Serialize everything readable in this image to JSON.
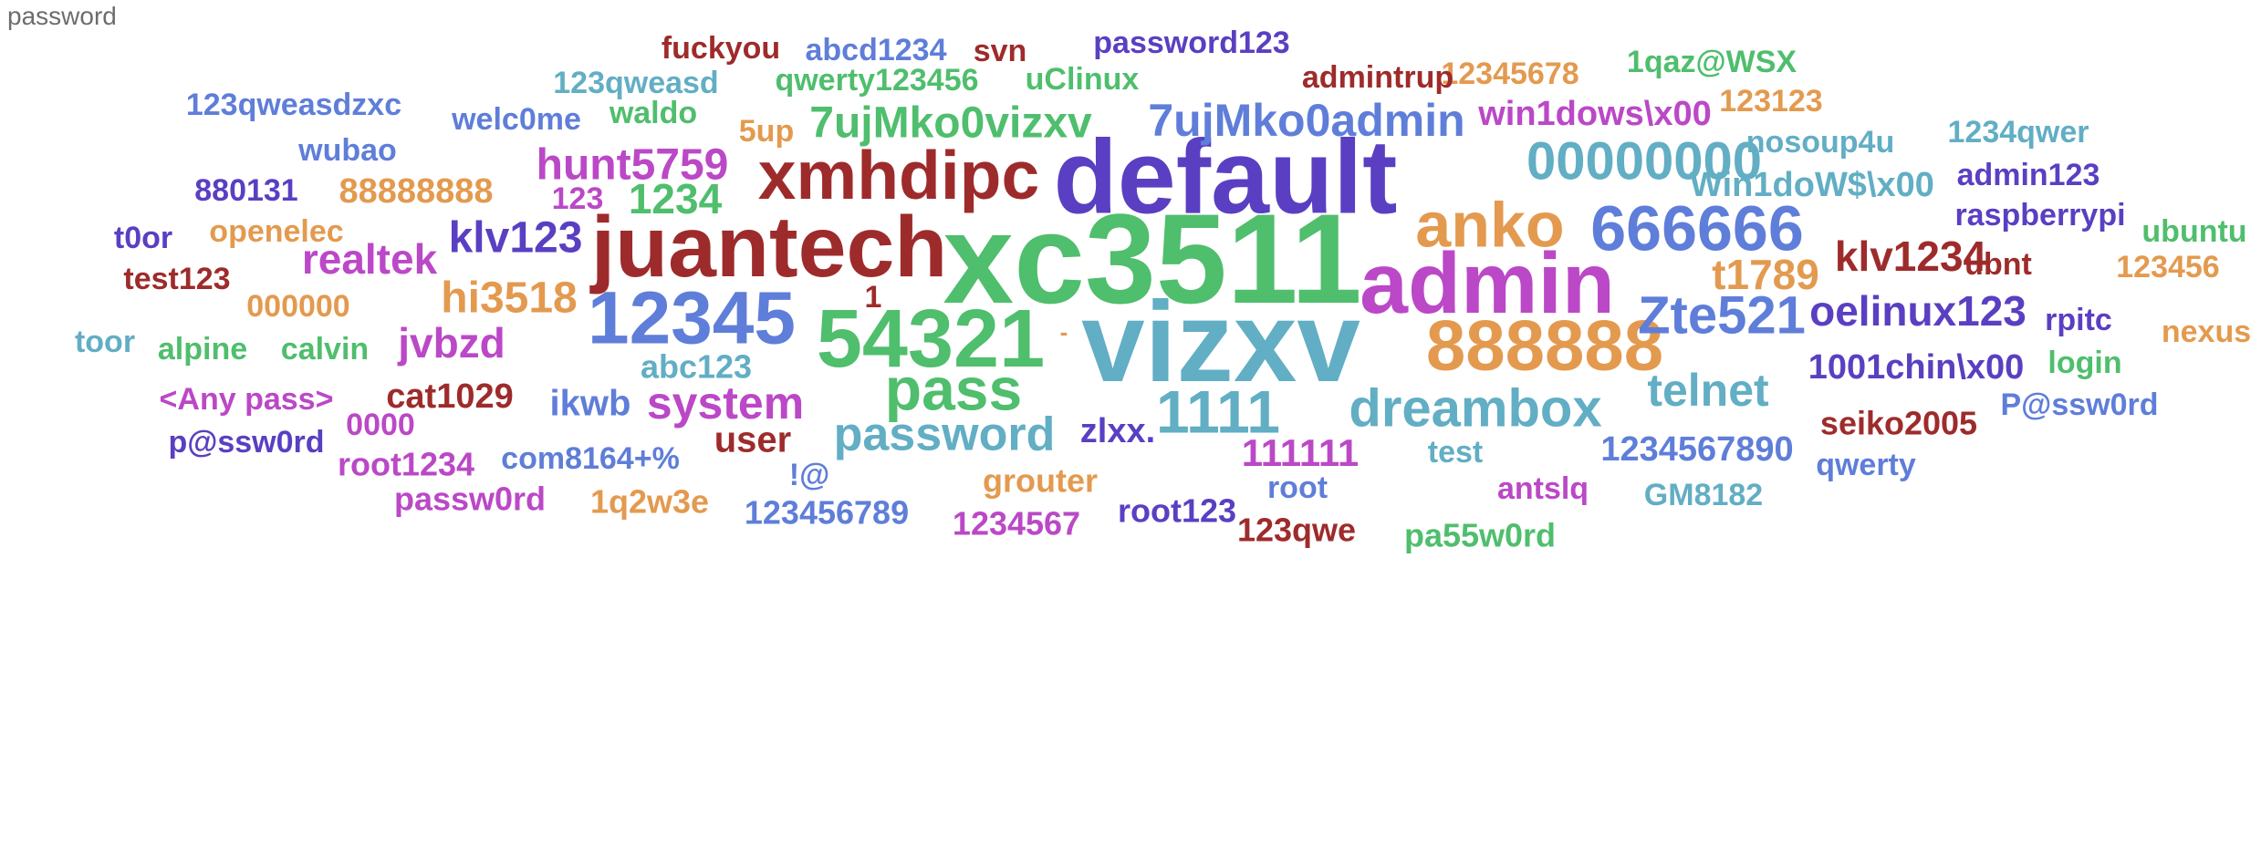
{
  "panel": {
    "title": "password"
  },
  "chart_data": {
    "type": "wordcloud",
    "words": [
      {
        "text": "xc3511",
        "weight": 100,
        "color": "#4fbe6d"
      },
      {
        "text": "vizxv",
        "weight": 96,
        "color": "#62aec4"
      },
      {
        "text": "default",
        "weight": 88,
        "color": "#5a3fc2"
      },
      {
        "text": "admin",
        "weight": 80,
        "color": "#bb48c7"
      },
      {
        "text": "juantech",
        "weight": 80,
        "color": "#9e2b2b"
      },
      {
        "text": "54321",
        "weight": 72,
        "color": "#4fbe6d"
      },
      {
        "text": "12345",
        "weight": 70,
        "color": "#5f7ed9"
      },
      {
        "text": "888888",
        "weight": 66,
        "color": "#e39a4f"
      },
      {
        "text": "xmhdipc",
        "weight": 66,
        "color": "#9e2b2b"
      },
      {
        "text": "anko",
        "weight": 62,
        "color": "#e39a4f"
      },
      {
        "text": "666666",
        "weight": 60,
        "color": "#5f7ed9"
      },
      {
        "text": "pass",
        "weight": 56,
        "color": "#4fbe6d"
      },
      {
        "text": "1111",
        "weight": 54,
        "color": "#62aec4"
      },
      {
        "text": "00000000",
        "weight": 50,
        "color": "#62aec4"
      },
      {
        "text": "dreambox",
        "weight": 50,
        "color": "#62aec4"
      },
      {
        "text": "Zte521",
        "weight": 48,
        "color": "#5f7ed9"
      },
      {
        "text": "password",
        "weight": 46,
        "color": "#62aec4"
      },
      {
        "text": "7ujMko0admin",
        "weight": 42,
        "color": "#5f7ed9"
      },
      {
        "text": "system",
        "weight": 42,
        "color": "#bb48c7"
      },
      {
        "text": "telnet",
        "weight": 42,
        "color": "#62aec4"
      },
      {
        "text": "7ujMko0vizxv",
        "weight": 40,
        "color": "#4fbe6d"
      },
      {
        "text": "hi3518",
        "weight": 40,
        "color": "#e39a4f"
      },
      {
        "text": "hunt5759",
        "weight": 40,
        "color": "#bb48c7"
      },
      {
        "text": "klv123",
        "weight": 40,
        "color": "#5a3fc2"
      },
      {
        "text": "oelinux123",
        "weight": 40,
        "color": "#5a3fc2"
      },
      {
        "text": "t1789",
        "weight": 40,
        "color": "#e39a4f"
      },
      {
        "text": "1234",
        "weight": 38,
        "color": "#4fbe6d"
      },
      {
        "text": "jvbzd",
        "weight": 38,
        "color": "#bb48c7"
      },
      {
        "text": "klv1234",
        "weight": 38,
        "color": "#9e2b2b"
      },
      {
        "text": "realtek",
        "weight": 38,
        "color": "#bb48c7"
      },
      {
        "text": "111111",
        "weight": 34,
        "color": "#bb48c7"
      },
      {
        "text": "ikwb",
        "weight": 34,
        "color": "#5f7ed9"
      },
      {
        "text": "user",
        "weight": 34,
        "color": "#9e2b2b"
      },
      {
        "text": "win1dows\\x00",
        "weight": 32,
        "color": "#bb48c7"
      },
      {
        "text": "Win1doW$\\x00",
        "weight": 32,
        "color": "#62aec4"
      },
      {
        "text": "cat1029",
        "weight": 32,
        "color": "#9e2b2b"
      },
      {
        "text": "1234567890",
        "weight": 32,
        "color": "#5f7ed9"
      },
      {
        "text": "1001chin\\x00",
        "weight": 32,
        "color": "#5a3fc2"
      },
      {
        "text": "zlxx.",
        "weight": 32,
        "color": "#5a3fc2"
      },
      {
        "text": "88888888",
        "weight": 32,
        "color": "#e39a4f"
      },
      {
        "text": "seiko2005",
        "weight": 30,
        "color": "#9e2b2b"
      },
      {
        "text": "123456789",
        "weight": 30,
        "color": "#5f7ed9"
      },
      {
        "text": "1234567",
        "weight": 30,
        "color": "#bb48c7"
      },
      {
        "text": "root123",
        "weight": 30,
        "color": "#5a3fc2"
      },
      {
        "text": "123qwe",
        "weight": 30,
        "color": "#9e2b2b"
      },
      {
        "text": "pa55w0rd",
        "weight": 30,
        "color": "#4fbe6d"
      },
      {
        "text": "grouter",
        "weight": 30,
        "color": "#e39a4f"
      },
      {
        "text": "root1234",
        "weight": 30,
        "color": "#bb48c7"
      },
      {
        "text": "passw0rd",
        "weight": 30,
        "color": "#bb48c7"
      },
      {
        "text": "1q2w3e",
        "weight": 30,
        "color": "#e39a4f"
      },
      {
        "text": "abc123",
        "weight": 30,
        "color": "#62aec4"
      },
      {
        "text": "com8164+%",
        "weight": 30,
        "color": "#5f7ed9"
      },
      {
        "text": "p@ssw0rd",
        "weight": 30,
        "color": "#5a3fc2"
      },
      {
        "text": "P@ssw0rd",
        "weight": 30,
        "color": "#5f7ed9"
      },
      {
        "text": "<Any pass>",
        "weight": 30,
        "color": "#bb48c7"
      },
      {
        "text": "0000",
        "weight": 30,
        "color": "#bb48c7"
      },
      {
        "text": "test",
        "weight": 30,
        "color": "#62aec4"
      },
      {
        "text": "root",
        "weight": 30,
        "color": "#5f7ed9"
      },
      {
        "text": "antslq",
        "weight": 30,
        "color": "#bb48c7"
      },
      {
        "text": "GM8182",
        "weight": 30,
        "color": "#62aec4"
      },
      {
        "text": "qwerty",
        "weight": 30,
        "color": "#5f7ed9"
      },
      {
        "text": "login",
        "weight": 30,
        "color": "#4fbe6d"
      },
      {
        "text": "nexus",
        "weight": 30,
        "color": "#e39a4f"
      },
      {
        "text": "rpitc",
        "weight": 30,
        "color": "#5a3fc2"
      },
      {
        "text": "123456",
        "weight": 30,
        "color": "#e39a4f"
      },
      {
        "text": "ubnt",
        "weight": 30,
        "color": "#9e2b2b"
      },
      {
        "text": "ubuntu",
        "weight": 30,
        "color": "#4fbe6d"
      },
      {
        "text": "raspberrypi",
        "weight": 30,
        "color": "#5a3fc2"
      },
      {
        "text": "admin123",
        "weight": 30,
        "color": "#5a3fc2"
      },
      {
        "text": "1234qwer",
        "weight": 30,
        "color": "#62aec4"
      },
      {
        "text": "nosoup4u",
        "weight": 30,
        "color": "#62aec4"
      },
      {
        "text": "123123",
        "weight": 30,
        "color": "#e39a4f"
      },
      {
        "text": "12345678",
        "weight": 30,
        "color": "#e39a4f"
      },
      {
        "text": "1qaz@WSX",
        "weight": 30,
        "color": "#4fbe6d"
      },
      {
        "text": "admintrup",
        "weight": 30,
        "color": "#9e2b2b"
      },
      {
        "text": "password123",
        "weight": 30,
        "color": "#5a3fc2"
      },
      {
        "text": "svn",
        "weight": 30,
        "color": "#9e2b2b"
      },
      {
        "text": "abcd1234",
        "weight": 30,
        "color": "#5f7ed9"
      },
      {
        "text": "fuckyou",
        "weight": 30,
        "color": "#9e2b2b"
      },
      {
        "text": "qwerty123456",
        "weight": 30,
        "color": "#4fbe6d"
      },
      {
        "text": "uClinux",
        "weight": 30,
        "color": "#4fbe6d"
      },
      {
        "text": "123qweasd",
        "weight": 30,
        "color": "#62aec4"
      },
      {
        "text": "123qweasdzxc",
        "weight": 30,
        "color": "#5f7ed9"
      },
      {
        "text": "welc0me",
        "weight": 30,
        "color": "#5f7ed9"
      },
      {
        "text": "waldo",
        "weight": 30,
        "color": "#4fbe6d"
      },
      {
        "text": "5up",
        "weight": 30,
        "color": "#e39a4f"
      },
      {
        "text": "wubao",
        "weight": 30,
        "color": "#5f7ed9"
      },
      {
        "text": "880131",
        "weight": 30,
        "color": "#5a3fc2"
      },
      {
        "text": "123",
        "weight": 30,
        "color": "#bb48c7"
      },
      {
        "text": "t0or",
        "weight": 30,
        "color": "#5a3fc2"
      },
      {
        "text": "openelec",
        "weight": 30,
        "color": "#e39a4f"
      },
      {
        "text": "test123",
        "weight": 30,
        "color": "#9e2b2b"
      },
      {
        "text": "000000",
        "weight": 30,
        "color": "#e39a4f"
      },
      {
        "text": "1",
        "weight": 30,
        "color": "#9e2b2b"
      },
      {
        "text": "toor",
        "weight": 30,
        "color": "#62aec4"
      },
      {
        "text": "alpine",
        "weight": 30,
        "color": "#4fbe6d"
      },
      {
        "text": "calvin",
        "weight": 30,
        "color": "#4fbe6d"
      },
      {
        "text": "!@",
        "weight": 30,
        "color": "#5f7ed9"
      },
      {
        "text": "-",
        "weight": 20,
        "color": "#e39a4f"
      }
    ]
  }
}
